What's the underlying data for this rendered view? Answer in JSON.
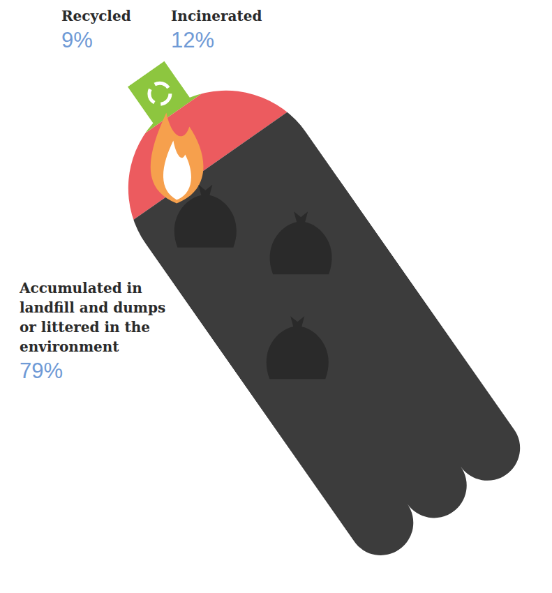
{
  "chart_data": {
    "type": "pictorial",
    "categories": [
      "Recycled",
      "Incinerated",
      "Accumulated in landfill and dumps or littered in the environment"
    ],
    "values": [
      9,
      12,
      79
    ],
    "value_labels": [
      "9%",
      "12%",
      "79%"
    ],
    "colors": [
      "#8dc63f",
      "#ec5b5f",
      "#3c3c3c"
    ],
    "data_labels": true
  }
}
